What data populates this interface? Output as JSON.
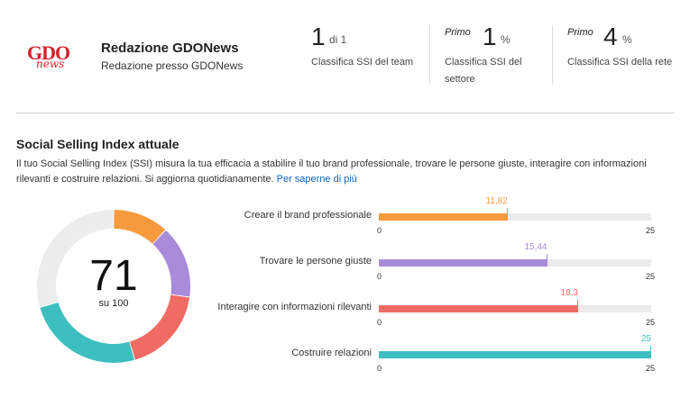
{
  "profile": {
    "logo_text": "GDO",
    "logo_subtext": "news",
    "name": "Redazione GDONews",
    "role": "Redazione presso GDONews"
  },
  "stats": [
    {
      "prefix": "",
      "value": "1",
      "suffix": "di 1",
      "label_lines": [
        "Classifica SSI del team"
      ]
    },
    {
      "prefix": "Primo",
      "value": "1",
      "suffix": "%",
      "label_lines": [
        "Classifica SSI del",
        "settore"
      ]
    },
    {
      "prefix": "Primo",
      "value": "4",
      "suffix": "%",
      "label_lines": [
        "Classifica SSI della rete"
      ]
    }
  ],
  "ssi": {
    "title": "Social Selling Index attuale",
    "description": "Il tuo Social Selling Index (SSI) misura la tua efficacia a stabilire il tuo brand professionale, trovare le persone giuste, interagire con informazioni rilevanti e costruire relazioni. Si aggiorna quotidianamente.",
    "learn_more": "Per saperne di più",
    "score": "71",
    "score_sub": "su 100",
    "axis_min": "0",
    "axis_max": "25",
    "track_color": "#ebebeb"
  },
  "chart_data": {
    "type": "bar",
    "orientation": "horizontal",
    "categories": [
      "Creare il brand professionale",
      "Trovare le persone giuste",
      "Interagire con informazioni rilevanti",
      "Costruire relazioni"
    ],
    "values": [
      11.82,
      15.44,
      18.3,
      25
    ],
    "value_labels": [
      "11,82",
      "15,44",
      "18,3",
      "25"
    ],
    "colors": [
      "#f79a3e",
      "#a88bd9",
      "#f06b63",
      "#3dbfbf"
    ],
    "xlim": [
      0,
      25
    ],
    "donut_total": 100,
    "donut_remainder_color": "#ececec"
  }
}
